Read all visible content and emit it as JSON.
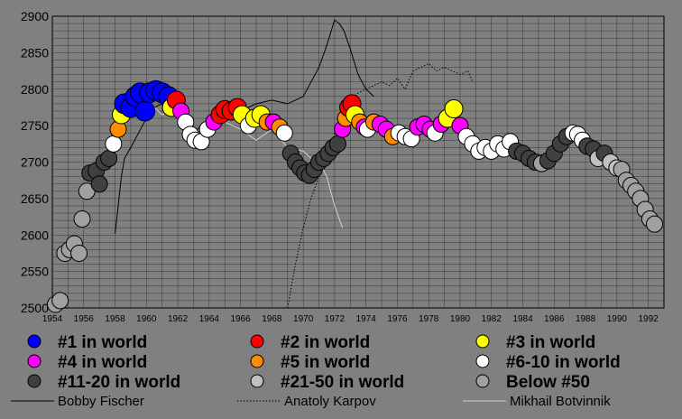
{
  "chart_data": {
    "type": "scatter",
    "xlim": [
      1954,
      1993
    ],
    "ylim": [
      2500,
      2900
    ],
    "y_ticks": [
      "2500",
      "2550",
      "2600",
      "2650",
      "2700",
      "2750",
      "2800",
      "2850",
      "2900"
    ],
    "x_ticks": [
      "1954",
      "1956",
      "1958",
      "1960",
      "1962",
      "1964",
      "1966",
      "1968",
      "1970",
      "1972",
      "1974",
      "1976",
      "1978",
      "1980",
      "1982",
      "1984",
      "1986",
      "1988",
      "1990",
      "1992"
    ],
    "grid": true,
    "colors": {
      "plot_bg": "#808080",
      "rank1": "#0000ff",
      "rank2": "#ff0000",
      "rank3": "#ffff00",
      "rank4": "#ff00ff",
      "rank5": "#ff8c00",
      "rank6_10": "#ffffff",
      "rank11_20": "#404040",
      "rank21_50": "#c0c0c0",
      "below50": "#a0a0a0"
    },
    "legend": {
      "placement": "bottom",
      "entries": [
        {
          "label": "#1 in world",
          "color": "#0000ff",
          "kind": "marker"
        },
        {
          "label": "#2 in world",
          "color": "#ff0000",
          "kind": "marker"
        },
        {
          "label": "#3 in world",
          "color": "#ffff00",
          "kind": "marker"
        },
        {
          "label": "#4 in world",
          "color": "#ff00ff",
          "kind": "marker"
        },
        {
          "label": "#5 in world",
          "color": "#ff8c00",
          "kind": "marker"
        },
        {
          "label": "#6-10 in world",
          "color": "#ffffff",
          "kind": "marker"
        },
        {
          "label": "#11-20 in world",
          "color": "#404040",
          "kind": "marker"
        },
        {
          "label": "#21-50 in world",
          "color": "#c0c0c0",
          "kind": "marker"
        },
        {
          "label": "Below #50",
          "color": "#a0a0a0",
          "kind": "marker"
        },
        {
          "label": "Bobby Fischer",
          "style": "solid",
          "kind": "line"
        },
        {
          "label": "Anatoly Karpov",
          "style": "dotted",
          "kind": "line"
        },
        {
          "label": "Mikhail Botvinnik",
          "style": "solid-light",
          "kind": "line"
        }
      ]
    },
    "scatter_points": [
      {
        "x": 1954.2,
        "y": 2505,
        "rank": "below50"
      },
      {
        "x": 1954.5,
        "y": 2510,
        "rank": "below50"
      },
      {
        "x": 1954.8,
        "y": 2575,
        "rank": "below50"
      },
      {
        "x": 1955.1,
        "y": 2580,
        "rank": "below50"
      },
      {
        "x": 1955.4,
        "y": 2588,
        "rank": "below50"
      },
      {
        "x": 1955.7,
        "y": 2575,
        "rank": "below50"
      },
      {
        "x": 1955.9,
        "y": 2622,
        "rank": "below50"
      },
      {
        "x": 1956.2,
        "y": 2660,
        "rank": "below50"
      },
      {
        "x": 1956.4,
        "y": 2685,
        "rank": "rank11_20"
      },
      {
        "x": 1956.8,
        "y": 2688,
        "rank": "rank11_20"
      },
      {
        "x": 1957.0,
        "y": 2670,
        "rank": "rank11_20"
      },
      {
        "x": 1957.3,
        "y": 2700,
        "rank": "rank11_20"
      },
      {
        "x": 1957.6,
        "y": 2705,
        "rank": "rank11_20"
      },
      {
        "x": 1957.9,
        "y": 2725,
        "rank": "rank6_10"
      },
      {
        "x": 1958.2,
        "y": 2745,
        "rank": "rank5"
      },
      {
        "x": 1958.4,
        "y": 2765,
        "rank": "rank3"
      },
      {
        "x": 1958.6,
        "y": 2780,
        "rank": "rank1"
      },
      {
        "x": 1959.0,
        "y": 2775,
        "rank": "rank1"
      },
      {
        "x": 1959.3,
        "y": 2790,
        "rank": "rank1"
      },
      {
        "x": 1959.6,
        "y": 2795,
        "rank": "rank1"
      },
      {
        "x": 1959.9,
        "y": 2770,
        "rank": "rank1"
      },
      {
        "x": 1960.2,
        "y": 2795,
        "rank": "rank1"
      },
      {
        "x": 1960.6,
        "y": 2798,
        "rank": "rank1"
      },
      {
        "x": 1961.0,
        "y": 2795,
        "rank": "rank1"
      },
      {
        "x": 1961.4,
        "y": 2790,
        "rank": "rank1"
      },
      {
        "x": 1961.6,
        "y": 2775,
        "rank": "rank3"
      },
      {
        "x": 1961.9,
        "y": 2785,
        "rank": "rank2"
      },
      {
        "x": 1962.2,
        "y": 2770,
        "rank": "rank4"
      },
      {
        "x": 1962.5,
        "y": 2755,
        "rank": "rank6_10"
      },
      {
        "x": 1962.8,
        "y": 2738,
        "rank": "rank6_10"
      },
      {
        "x": 1963.1,
        "y": 2730,
        "rank": "rank6_10"
      },
      {
        "x": 1963.5,
        "y": 2728,
        "rank": "rank6_10"
      },
      {
        "x": 1963.9,
        "y": 2745,
        "rank": "rank6_10"
      },
      {
        "x": 1964.3,
        "y": 2755,
        "rank": "rank4"
      },
      {
        "x": 1964.7,
        "y": 2765,
        "rank": "rank2"
      },
      {
        "x": 1965.0,
        "y": 2772,
        "rank": "rank2"
      },
      {
        "x": 1965.4,
        "y": 2770,
        "rank": "rank2"
      },
      {
        "x": 1965.8,
        "y": 2775,
        "rank": "rank2"
      },
      {
        "x": 1966.1,
        "y": 2765,
        "rank": "rank3"
      },
      {
        "x": 1966.5,
        "y": 2750,
        "rank": "rank6_10"
      },
      {
        "x": 1966.9,
        "y": 2760,
        "rank": "rank3"
      },
      {
        "x": 1967.3,
        "y": 2765,
        "rank": "rank3"
      },
      {
        "x": 1967.7,
        "y": 2755,
        "rank": "rank5"
      },
      {
        "x": 1968.1,
        "y": 2755,
        "rank": "rank4"
      },
      {
        "x": 1968.5,
        "y": 2748,
        "rank": "rank5"
      },
      {
        "x": 1968.8,
        "y": 2740,
        "rank": "rank6_10"
      },
      {
        "x": 1969.2,
        "y": 2712,
        "rank": "rank11_20"
      },
      {
        "x": 1969.5,
        "y": 2700,
        "rank": "rank11_20"
      },
      {
        "x": 1969.8,
        "y": 2692,
        "rank": "rank11_20"
      },
      {
        "x": 1970.1,
        "y": 2685,
        "rank": "rank11_20"
      },
      {
        "x": 1970.4,
        "y": 2682,
        "rank": "rank11_20"
      },
      {
        "x": 1970.7,
        "y": 2690,
        "rank": "rank11_20"
      },
      {
        "x": 1971.0,
        "y": 2700,
        "rank": "rank11_20"
      },
      {
        "x": 1971.3,
        "y": 2705,
        "rank": "rank11_20"
      },
      {
        "x": 1971.6,
        "y": 2712,
        "rank": "rank11_20"
      },
      {
        "x": 1971.9,
        "y": 2720,
        "rank": "rank11_20"
      },
      {
        "x": 1972.2,
        "y": 2725,
        "rank": "rank11_20"
      },
      {
        "x": 1972.5,
        "y": 2745,
        "rank": "rank4"
      },
      {
        "x": 1972.7,
        "y": 2760,
        "rank": "rank5"
      },
      {
        "x": 1972.9,
        "y": 2775,
        "rank": "rank2"
      },
      {
        "x": 1973.1,
        "y": 2780,
        "rank": "rank2"
      },
      {
        "x": 1973.3,
        "y": 2765,
        "rank": "rank3"
      },
      {
        "x": 1973.6,
        "y": 2755,
        "rank": "rank5"
      },
      {
        "x": 1973.9,
        "y": 2748,
        "rank": "rank4"
      },
      {
        "x": 1974.1,
        "y": 2745,
        "rank": "rank6_10"
      },
      {
        "x": 1974.5,
        "y": 2755,
        "rank": "rank5"
      },
      {
        "x": 1974.9,
        "y": 2752,
        "rank": "rank4"
      },
      {
        "x": 1975.3,
        "y": 2745,
        "rank": "rank4"
      },
      {
        "x": 1975.7,
        "y": 2735,
        "rank": "rank5"
      },
      {
        "x": 1976.1,
        "y": 2740,
        "rank": "rank6_10"
      },
      {
        "x": 1976.5,
        "y": 2735,
        "rank": "rank6_10"
      },
      {
        "x": 1976.9,
        "y": 2732,
        "rank": "rank6_10"
      },
      {
        "x": 1977.3,
        "y": 2748,
        "rank": "rank4"
      },
      {
        "x": 1977.7,
        "y": 2752,
        "rank": "rank4"
      },
      {
        "x": 1978.1,
        "y": 2745,
        "rank": "rank4"
      },
      {
        "x": 1978.4,
        "y": 2740,
        "rank": "rank6_10"
      },
      {
        "x": 1978.8,
        "y": 2752,
        "rank": "rank4"
      },
      {
        "x": 1979.2,
        "y": 2760,
        "rank": "rank3"
      },
      {
        "x": 1979.6,
        "y": 2773,
        "rank": "rank3"
      },
      {
        "x": 1980.0,
        "y": 2750,
        "rank": "rank4"
      },
      {
        "x": 1980.4,
        "y": 2735,
        "rank": "rank6_10"
      },
      {
        "x": 1980.8,
        "y": 2725,
        "rank": "rank6_10"
      },
      {
        "x": 1981.2,
        "y": 2715,
        "rank": "rank6_10"
      },
      {
        "x": 1981.6,
        "y": 2720,
        "rank": "rank6_10"
      },
      {
        "x": 1982.0,
        "y": 2715,
        "rank": "rank6_10"
      },
      {
        "x": 1982.4,
        "y": 2725,
        "rank": "rank6_10"
      },
      {
        "x": 1982.8,
        "y": 2718,
        "rank": "rank6_10"
      },
      {
        "x": 1983.2,
        "y": 2728,
        "rank": "rank6_10"
      },
      {
        "x": 1983.6,
        "y": 2715,
        "rank": "rank11_20"
      },
      {
        "x": 1984.0,
        "y": 2712,
        "rank": "rank11_20"
      },
      {
        "x": 1984.4,
        "y": 2705,
        "rank": "rank11_20"
      },
      {
        "x": 1984.8,
        "y": 2700,
        "rank": "rank11_20"
      },
      {
        "x": 1985.2,
        "y": 2698,
        "rank": "below50"
      },
      {
        "x": 1985.6,
        "y": 2702,
        "rank": "rank11_20"
      },
      {
        "x": 1986.0,
        "y": 2712,
        "rank": "rank11_20"
      },
      {
        "x": 1986.4,
        "y": 2725,
        "rank": "rank11_20"
      },
      {
        "x": 1986.8,
        "y": 2735,
        "rank": "rank11_20"
      },
      {
        "x": 1987.2,
        "y": 2740,
        "rank": "rank6_10"
      },
      {
        "x": 1987.5,
        "y": 2738,
        "rank": "rank6_10"
      },
      {
        "x": 1987.8,
        "y": 2730,
        "rank": "rank6_10"
      },
      {
        "x": 1988.1,
        "y": 2722,
        "rank": "rank11_20"
      },
      {
        "x": 1988.5,
        "y": 2718,
        "rank": "rank11_20"
      },
      {
        "x": 1988.8,
        "y": 2705,
        "rank": "rank21_50"
      },
      {
        "x": 1989.2,
        "y": 2712,
        "rank": "rank11_20"
      },
      {
        "x": 1989.6,
        "y": 2700,
        "rank": "rank21_50"
      },
      {
        "x": 1990.0,
        "y": 2692,
        "rank": "rank21_50"
      },
      {
        "x": 1990.3,
        "y": 2690,
        "rank": "below50"
      },
      {
        "x": 1990.6,
        "y": 2675,
        "rank": "below50"
      },
      {
        "x": 1990.9,
        "y": 2668,
        "rank": "below50"
      },
      {
        "x": 1991.2,
        "y": 2660,
        "rank": "below50"
      },
      {
        "x": 1991.5,
        "y": 2650,
        "rank": "below50"
      },
      {
        "x": 1991.8,
        "y": 2635,
        "rank": "below50"
      },
      {
        "x": 1992.1,
        "y": 2622,
        "rank": "below50"
      },
      {
        "x": 1992.4,
        "y": 2615,
        "rank": "below50"
      }
    ],
    "lines": [
      {
        "name": "Bobby Fischer",
        "style": "solid",
        "color": "#000000",
        "x": [
          1958.0,
          1958.2,
          1958.4,
          1958.6,
          1959.0,
          1959.5,
          1960.0,
          1960.5,
          1961.0,
          1961.5,
          1962.0,
          1962.5,
          1963.0,
          1964.0,
          1965.0,
          1966.0,
          1967.0,
          1968.0,
          1969.0,
          1970.0,
          1970.5,
          1971.0,
          1971.5,
          1972.0,
          1972.3,
          1972.6,
          1973.0,
          1973.5,
          1974.0,
          1974.5
        ],
        "y": [
          2602,
          2640,
          2680,
          2705,
          2720,
          2740,
          2760,
          2775,
          2780,
          2770,
          2765,
          2750,
          2740,
          2760,
          2765,
          2770,
          2780,
          2785,
          2780,
          2790,
          2810,
          2830,
          2860,
          2895,
          2890,
          2880,
          2855,
          2820,
          2800,
          2790
        ]
      },
      {
        "name": "Anatoly Karpov",
        "style": "dotted",
        "color": "#000000",
        "x": [
          1969.0,
          1969.5,
          1970.0,
          1970.5,
          1971.0,
          1971.5,
          1972.0,
          1972.5,
          1973.0,
          1973.5,
          1974.0,
          1974.5,
          1975.0,
          1975.5,
          1976.0,
          1976.5,
          1977.0,
          1977.5,
          1978.0,
          1978.5,
          1979.0,
          1979.5,
          1980.0,
          1980.5,
          1980.8
        ],
        "y": [
          2500,
          2560,
          2610,
          2650,
          2680,
          2700,
          2740,
          2760,
          2780,
          2795,
          2800,
          2805,
          2810,
          2805,
          2815,
          2800,
          2825,
          2830,
          2835,
          2825,
          2830,
          2825,
          2820,
          2825,
          2810
        ]
      },
      {
        "name": "Mikhail Botvinnik",
        "style": "solid-light",
        "color": "#d0d0d0",
        "x": [
          1958.5,
          1959.0,
          1959.5,
          1960.0,
          1960.5,
          1961.0,
          1961.5,
          1962.0,
          1963.0,
          1964.0,
          1965.0,
          1966.0,
          1967.0,
          1968.0,
          1969.0,
          1970.0,
          1970.5,
          1971.0,
          1971.5,
          1972.0,
          1972.5
        ],
        "y": [
          2760,
          2770,
          2775,
          2780,
          2775,
          2765,
          2770,
          2760,
          2735,
          2745,
          2755,
          2745,
          2730,
          2745,
          2720,
          2715,
          2705,
          2700,
          2680,
          2640,
          2610
        ]
      }
    ]
  }
}
